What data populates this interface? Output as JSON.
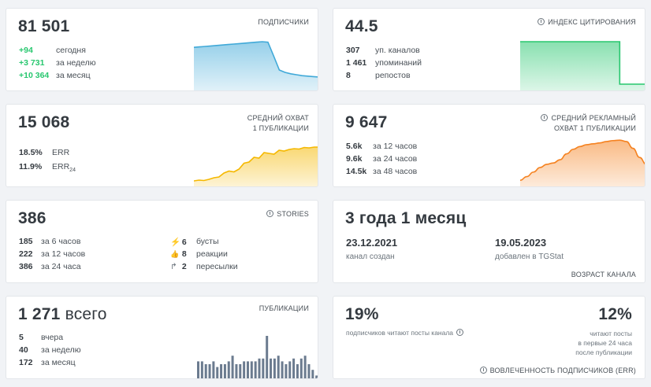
{
  "subscribers": {
    "value": "81 501",
    "caption": "ПОДПИСЧИКИ",
    "rows": [
      {
        "value": "+94",
        "label": "сегодня"
      },
      {
        "value": "+3 731",
        "label": "за неделю"
      },
      {
        "value": "+10 364",
        "label": "за месяц"
      }
    ],
    "spark": [
      88,
      89,
      90,
      91,
      92,
      93,
      94,
      95,
      96,
      97,
      98,
      99,
      100,
      99,
      70,
      40,
      35,
      32,
      30,
      28,
      27,
      26,
      25
    ],
    "color": "#40a9d8"
  },
  "citation": {
    "value": "44.5",
    "caption": "ИНДЕКС ЦИТИРОВАНИЯ",
    "rows": [
      {
        "value": "307",
        "label": "уп. каналов"
      },
      {
        "value": "1 461",
        "label": "упоминаний"
      },
      {
        "value": "8",
        "label": "репостов"
      }
    ],
    "spark": [
      100,
      100,
      100,
      100,
      100,
      100,
      100,
      100,
      100,
      100,
      100,
      100,
      100,
      100,
      100,
      10,
      10,
      10,
      10,
      10
    ],
    "color": "#28c76f"
  },
  "reach": {
    "value": "15 068",
    "caption_line1": "СРЕДНИЙ ОХВАТ",
    "caption_line2": "1 ПУБЛИКАЦИИ",
    "rows": [
      {
        "value": "18.5%",
        "label": "ERR"
      },
      {
        "value": "11.9%",
        "label": "ERR",
        "sub": "24"
      }
    ],
    "spark": [
      10,
      12,
      11,
      14,
      18,
      20,
      30,
      35,
      33,
      40,
      55,
      58,
      70,
      68,
      82,
      80,
      78,
      88,
      86,
      90,
      92,
      91,
      95,
      94,
      96,
      96
    ],
    "color": "#f5b800"
  },
  "ad_reach": {
    "value": "9 647",
    "caption_line1": "СРЕДНИЙ РЕКЛАМНЫЙ",
    "caption_line2": "ОХВАТ 1 ПУБЛИКАЦИИ",
    "rows": [
      {
        "value": "5.6k",
        "label": "за 12 часов"
      },
      {
        "value": "9.6k",
        "label": "за 24 часов"
      },
      {
        "value": "14.5k",
        "label": "за 48 часов"
      }
    ],
    "spark": [
      10,
      18,
      28,
      38,
      45,
      48,
      55,
      68,
      78,
      84,
      88,
      90,
      92,
      95,
      97,
      98,
      95,
      80,
      60,
      45
    ],
    "color": "#f58220"
  },
  "stories": {
    "value": "386",
    "caption": "STORIES",
    "left_rows": [
      {
        "value": "185",
        "label": "за 6 часов"
      },
      {
        "value": "222",
        "label": "за 12 часов"
      },
      {
        "value": "386",
        "label": "за 24 часа"
      }
    ],
    "right_rows": [
      {
        "icon": "boost-icon",
        "glyph": "⚡",
        "value": "6",
        "label": "бусты"
      },
      {
        "icon": "like-icon",
        "glyph": "👍",
        "value": "8",
        "label": "реакции"
      },
      {
        "icon": "forward-icon",
        "glyph": "↱",
        "value": "2",
        "label": "пересылки"
      }
    ]
  },
  "age": {
    "value": "3 года 1 месяц",
    "created_date": "23.12.2021",
    "created_label": "канал создан",
    "added_date": "19.05.2023",
    "added_label": "добавлен в TGStat",
    "caption": "ВОЗРАСТ КАНАЛА"
  },
  "posts": {
    "value": "1 271",
    "value_suffix": "всего",
    "caption": "ПУБЛИКАЦИИ",
    "rows": [
      {
        "value": "5",
        "label": "вчера"
      },
      {
        "value": "40",
        "label": "за неделю"
      },
      {
        "value": "172",
        "label": "за месяц"
      }
    ],
    "bars": [
      6,
      6,
      5,
      5,
      6,
      4,
      5,
      5,
      6,
      8,
      5,
      5,
      6,
      6,
      6,
      6,
      7,
      7,
      15,
      7,
      7,
      8,
      6,
      5,
      6,
      7,
      5,
      7,
      8,
      5,
      3,
      1
    ],
    "color": "#6b7b8f"
  },
  "engagement": {
    "left_value": "19%",
    "left_label": "подписчиков читают посты канала",
    "right_value": "12%",
    "right_label_1": "читают посты",
    "right_label_2": "в первые 24 часа",
    "right_label_3": "после публикации",
    "caption": "ВОВЛЕЧЕННОСТЬ ПОДПИСЧИКОВ (ERR)"
  }
}
